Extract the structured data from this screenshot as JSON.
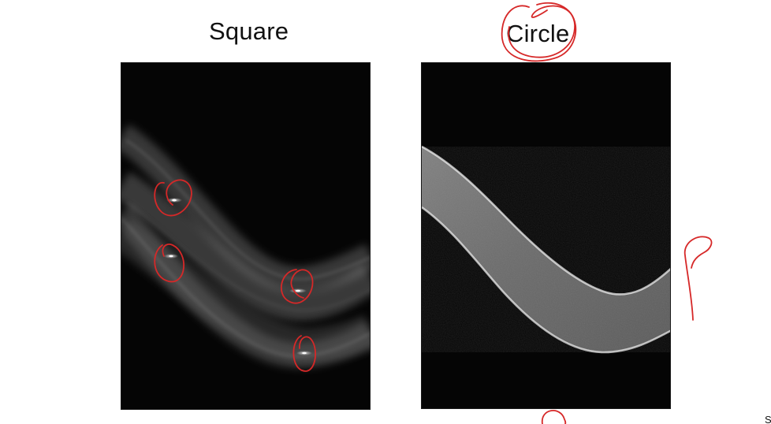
{
  "labels": {
    "square": "Square",
    "circle": "Circle",
    "corner": "S"
  },
  "colors": {
    "background": "#ffffff",
    "panel": "#050505",
    "annotation": "#d62828",
    "curve_light": "#d9d9d9",
    "curve_dim": "#8c8c8c"
  },
  "icons": {
    "annotation_marks": "red-circle-annotation"
  }
}
